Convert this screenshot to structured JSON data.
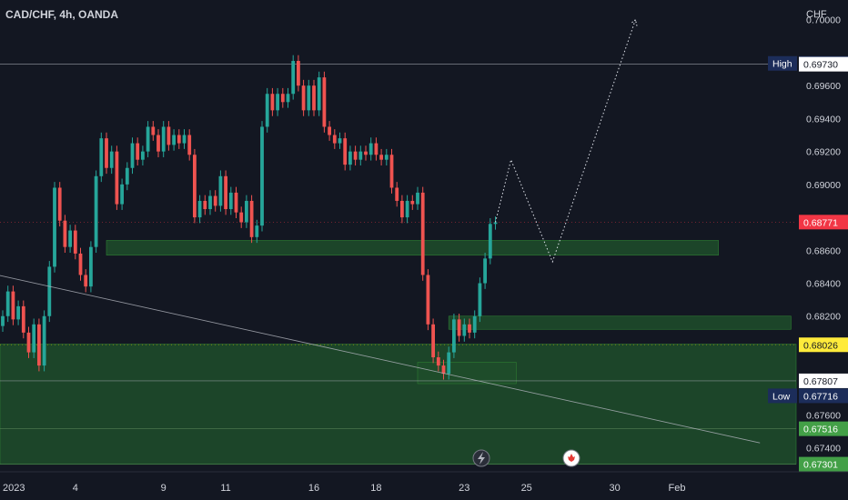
{
  "header": {
    "symbol": "CAD/CHF, 4h, OANDA",
    "currency": "CHF"
  },
  "colors": {
    "up": "#26a69a",
    "down": "#ef5350",
    "zone": "#1f4d2a",
    "zone_border": "#2e7d32",
    "price_tag": "#f23645",
    "support_tag": "#ffeb3b",
    "green_tag": "#43a047",
    "navy_tag": "#1c2d5a",
    "white_tag": "#ffffff"
  },
  "icons": {
    "event_1": "lightning-icon",
    "event_2": "canada-flag-icon"
  },
  "chart_data": {
    "type": "candlestick",
    "title": "CAD/CHF, 4h, OANDA",
    "ylim": [
      0.6726,
      0.7012
    ],
    "y_ticks": [
      "0.70000",
      "0.69600",
      "0.69400",
      "0.69200",
      "0.69000",
      "0.68600",
      "0.68400",
      "0.68200",
      "0.67600",
      "0.67400"
    ],
    "x_tick_labels": [
      {
        "label": "2023",
        "bar": 0
      },
      {
        "label": "4",
        "bar": 14
      },
      {
        "label": "9",
        "bar": 31
      },
      {
        "label": "11",
        "bar": 43
      },
      {
        "label": "16",
        "bar": 60
      },
      {
        "label": "18",
        "bar": 72
      },
      {
        "label": "23",
        "bar": 89
      },
      {
        "label": "25",
        "bar": 101
      },
      {
        "label": "30",
        "bar": 118
      },
      {
        "label": "Feb",
        "bar": 130
      }
    ],
    "price_labels": {
      "high": {
        "label": "High",
        "value": "0.69735"
      },
      "high_line": "0.69730",
      "current": "0.68771",
      "support": "0.68026",
      "level": "0.67807",
      "low": {
        "label": "Low",
        "value": "0.67716"
      },
      "green_1": "0.67516",
      "green_2": "0.67301"
    },
    "closes": [
      0.682,
      0.6835,
      0.6818,
      0.6826,
      0.681,
      0.6798,
      0.6815,
      0.679,
      0.682,
      0.685,
      0.6898,
      0.6878,
      0.6862,
      0.6872,
      0.6858,
      0.6845,
      0.6838,
      0.6862,
      0.6905,
      0.6928,
      0.691,
      0.692,
      0.6888,
      0.69,
      0.691,
      0.6925,
      0.6915,
      0.692,
      0.6935,
      0.693,
      0.692,
      0.6935,
      0.6924,
      0.693,
      0.6925,
      0.693,
      0.6918,
      0.688,
      0.689,
      0.6885,
      0.6893,
      0.6887,
      0.6905,
      0.6885,
      0.6895,
      0.6883,
      0.6877,
      0.689,
      0.6868,
      0.6875,
      0.6935,
      0.6955,
      0.6945,
      0.6955,
      0.695,
      0.6955,
      0.6975,
      0.696,
      0.6945,
      0.696,
      0.6945,
      0.6965,
      0.6935,
      0.693,
      0.6925,
      0.6928,
      0.6912,
      0.692,
      0.6915,
      0.692,
      0.6918,
      0.6925,
      0.6918,
      0.6915,
      0.6918,
      0.6898,
      0.689,
      0.688,
      0.689,
      0.6888,
      0.6895,
      0.6845,
      0.6815,
      0.6795,
      0.679,
      0.6785,
      0.6798,
      0.6818,
      0.6808,
      0.6815,
      0.681,
      0.682,
      0.684,
      0.6855,
      0.6876,
      0.6877
    ],
    "trend_line": {
      "from": {
        "bar": -1,
        "price": 0.6845
      },
      "to": {
        "bar": 146,
        "price": 0.6743
      }
    },
    "zones": [
      {
        "from_bar": 20,
        "to_bar": 138,
        "top": 0.6866,
        "bottom": 0.6857
      },
      {
        "from_bar": 86,
        "to_bar": 152,
        "top": 0.682,
        "bottom": 0.6812
      },
      {
        "from_bar": 80,
        "to_bar": 99,
        "top": 0.6792,
        "bottom": 0.6779
      },
      {
        "from_bar": -5,
        "to_bar": 160,
        "top": 0.6803,
        "bottom": 0.673
      }
    ],
    "projection_path": [
      {
        "bar": 95,
        "price": 0.6877
      },
      {
        "bar": 98,
        "price": 0.6915
      },
      {
        "bar": 106,
        "price": 0.6853
      },
      {
        "bar": 122,
        "price": 0.7
      }
    ]
  }
}
